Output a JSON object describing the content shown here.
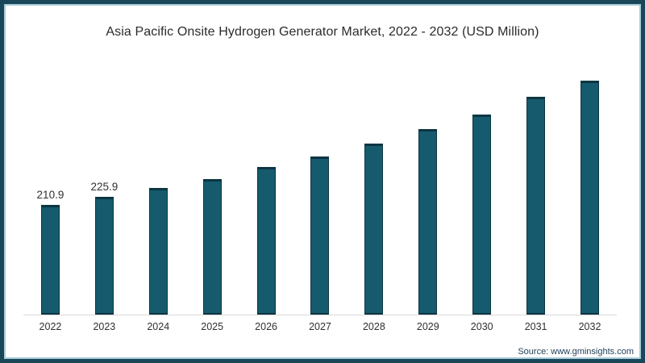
{
  "page": {
    "source": "Source: www.gminsights.com"
  },
  "colors": {
    "bar": "#165A6D",
    "bar_edge": "#0C3642",
    "frame_border": "#1A4659",
    "frame_inner_line": "#A9CBDA",
    "axis_line": "#D8D8D8",
    "title_text": "#2B2B2B",
    "label_text": "#2F2F2F",
    "source_text": "#24425C"
  },
  "chart_data": {
    "type": "bar",
    "title": "Asia Pacific Onsite Hydrogen Generator Market, 2022 - 2032 (USD Million)",
    "categories": [
      "2022",
      "2023",
      "2024",
      "2025",
      "2026",
      "2027",
      "2028",
      "2029",
      "2030",
      "2031",
      "2032"
    ],
    "values": [
      210.9,
      225.9,
      243,
      260,
      283,
      303,
      328,
      355,
      384,
      417,
      448
    ],
    "value_labels": [
      "210.9",
      "225.9",
      "",
      "",
      "",
      "",
      "",
      "",
      "",
      "",
      ""
    ],
    "xlabel": "",
    "ylabel": "",
    "ylim": [
      0,
      464
    ],
    "grid": false,
    "legend": "none"
  }
}
